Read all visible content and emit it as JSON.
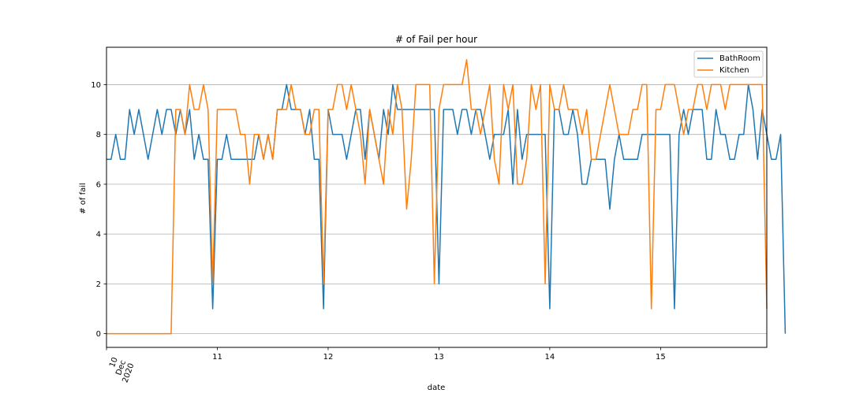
{
  "chart_data": {
    "type": "line",
    "title": "# of Fail per hour",
    "xlabel": "date",
    "ylabel": "# of fail",
    "x_start": "2020-12-10T00:00",
    "x_end": "2020-12-15T23:00",
    "xlim": [
      "2020-12-10T00:00",
      "2020-12-15T23:00"
    ],
    "ylim": [
      -0.55,
      11.5
    ],
    "grid": "y-major",
    "legend_position": "top-right",
    "x_ticks": [
      {
        "at": "2020-12-10T00:00",
        "label_lines": [
          "10",
          "Dec",
          "2020"
        ],
        "rotated": true
      },
      {
        "at": "2020-12-11T00:00",
        "label_lines": [
          "11"
        ],
        "rotated": false
      },
      {
        "at": "2020-12-12T00:00",
        "label_lines": [
          "12"
        ],
        "rotated": false
      },
      {
        "at": "2020-12-13T00:00",
        "label_lines": [
          "13"
        ],
        "rotated": false
      },
      {
        "at": "2020-12-14T00:00",
        "label_lines": [
          "14"
        ],
        "rotated": false
      },
      {
        "at": "2020-12-15T00:00",
        "label_lines": [
          "15"
        ],
        "rotated": false
      }
    ],
    "y_ticks": [
      0,
      2,
      4,
      6,
      8,
      10
    ],
    "series": [
      {
        "name": "BathRoom",
        "color": "#1f77b4",
        "values": [
          7,
          7,
          8,
          7,
          7,
          9,
          8,
          9,
          8,
          7,
          8,
          9,
          8,
          9,
          9,
          8,
          9,
          8,
          9,
          7,
          8,
          7,
          7,
          1,
          7,
          7,
          8,
          7,
          7,
          7,
          7,
          7,
          7,
          8,
          7,
          8,
          7,
          9,
          9,
          10,
          9,
          9,
          9,
          8,
          9,
          7,
          7,
          1,
          9,
          8,
          8,
          8,
          7,
          8,
          9,
          9,
          7,
          9,
          8,
          7,
          9,
          8,
          10,
          9,
          9,
          9,
          9,
          9,
          9,
          9,
          9,
          9,
          2,
          9,
          9,
          9,
          8,
          9,
          9,
          8,
          9,
          9,
          8,
          7,
          8,
          8,
          8,
          9,
          6,
          9,
          7,
          8,
          8,
          8,
          8,
          8,
          1,
          9,
          9,
          8,
          8,
          9,
          8,
          6,
          6,
          7,
          7,
          7,
          7,
          5,
          7,
          8,
          7,
          7,
          7,
          7,
          8,
          8,
          8,
          8,
          8,
          8,
          8,
          1,
          8,
          9,
          8,
          9,
          9,
          9,
          7,
          7,
          9,
          8,
          8,
          7,
          7,
          8,
          8,
          10,
          9,
          7,
          9,
          8,
          7,
          7,
          8,
          0
        ]
      },
      {
        "name": "Kitchen",
        "color": "#ff7f0e",
        "values": [
          0,
          0,
          0,
          0,
          0,
          0,
          0,
          0,
          0,
          0,
          0,
          0,
          0,
          0,
          0,
          9,
          9,
          8,
          10,
          9,
          9,
          10,
          9,
          2,
          9,
          9,
          9,
          9,
          9,
          8,
          8,
          6,
          8,
          8,
          7,
          8,
          7,
          9,
          9,
          9,
          10,
          9,
          9,
          8,
          8,
          9,
          9,
          2,
          9,
          9,
          10,
          10,
          9,
          10,
          9,
          8,
          6,
          9,
          8,
          7,
          6,
          9,
          8,
          10,
          9,
          5,
          7,
          10,
          10,
          10,
          10,
          2,
          9,
          10,
          10,
          10,
          10,
          10,
          11,
          9,
          9,
          8,
          9,
          10,
          7,
          6,
          10,
          9,
          10,
          6,
          6,
          7,
          10,
          9,
          10,
          2,
          10,
          9,
          9,
          10,
          9,
          9,
          9,
          8,
          9,
          7,
          7,
          8,
          9,
          10,
          9,
          8,
          8,
          8,
          9,
          9,
          10,
          10,
          1,
          9,
          9,
          10,
          10,
          10,
          9,
          8,
          9,
          9,
          10,
          10,
          9,
          10,
          10,
          10,
          9,
          10,
          10,
          10,
          10,
          10,
          10,
          10,
          10,
          1
        ]
      }
    ]
  }
}
